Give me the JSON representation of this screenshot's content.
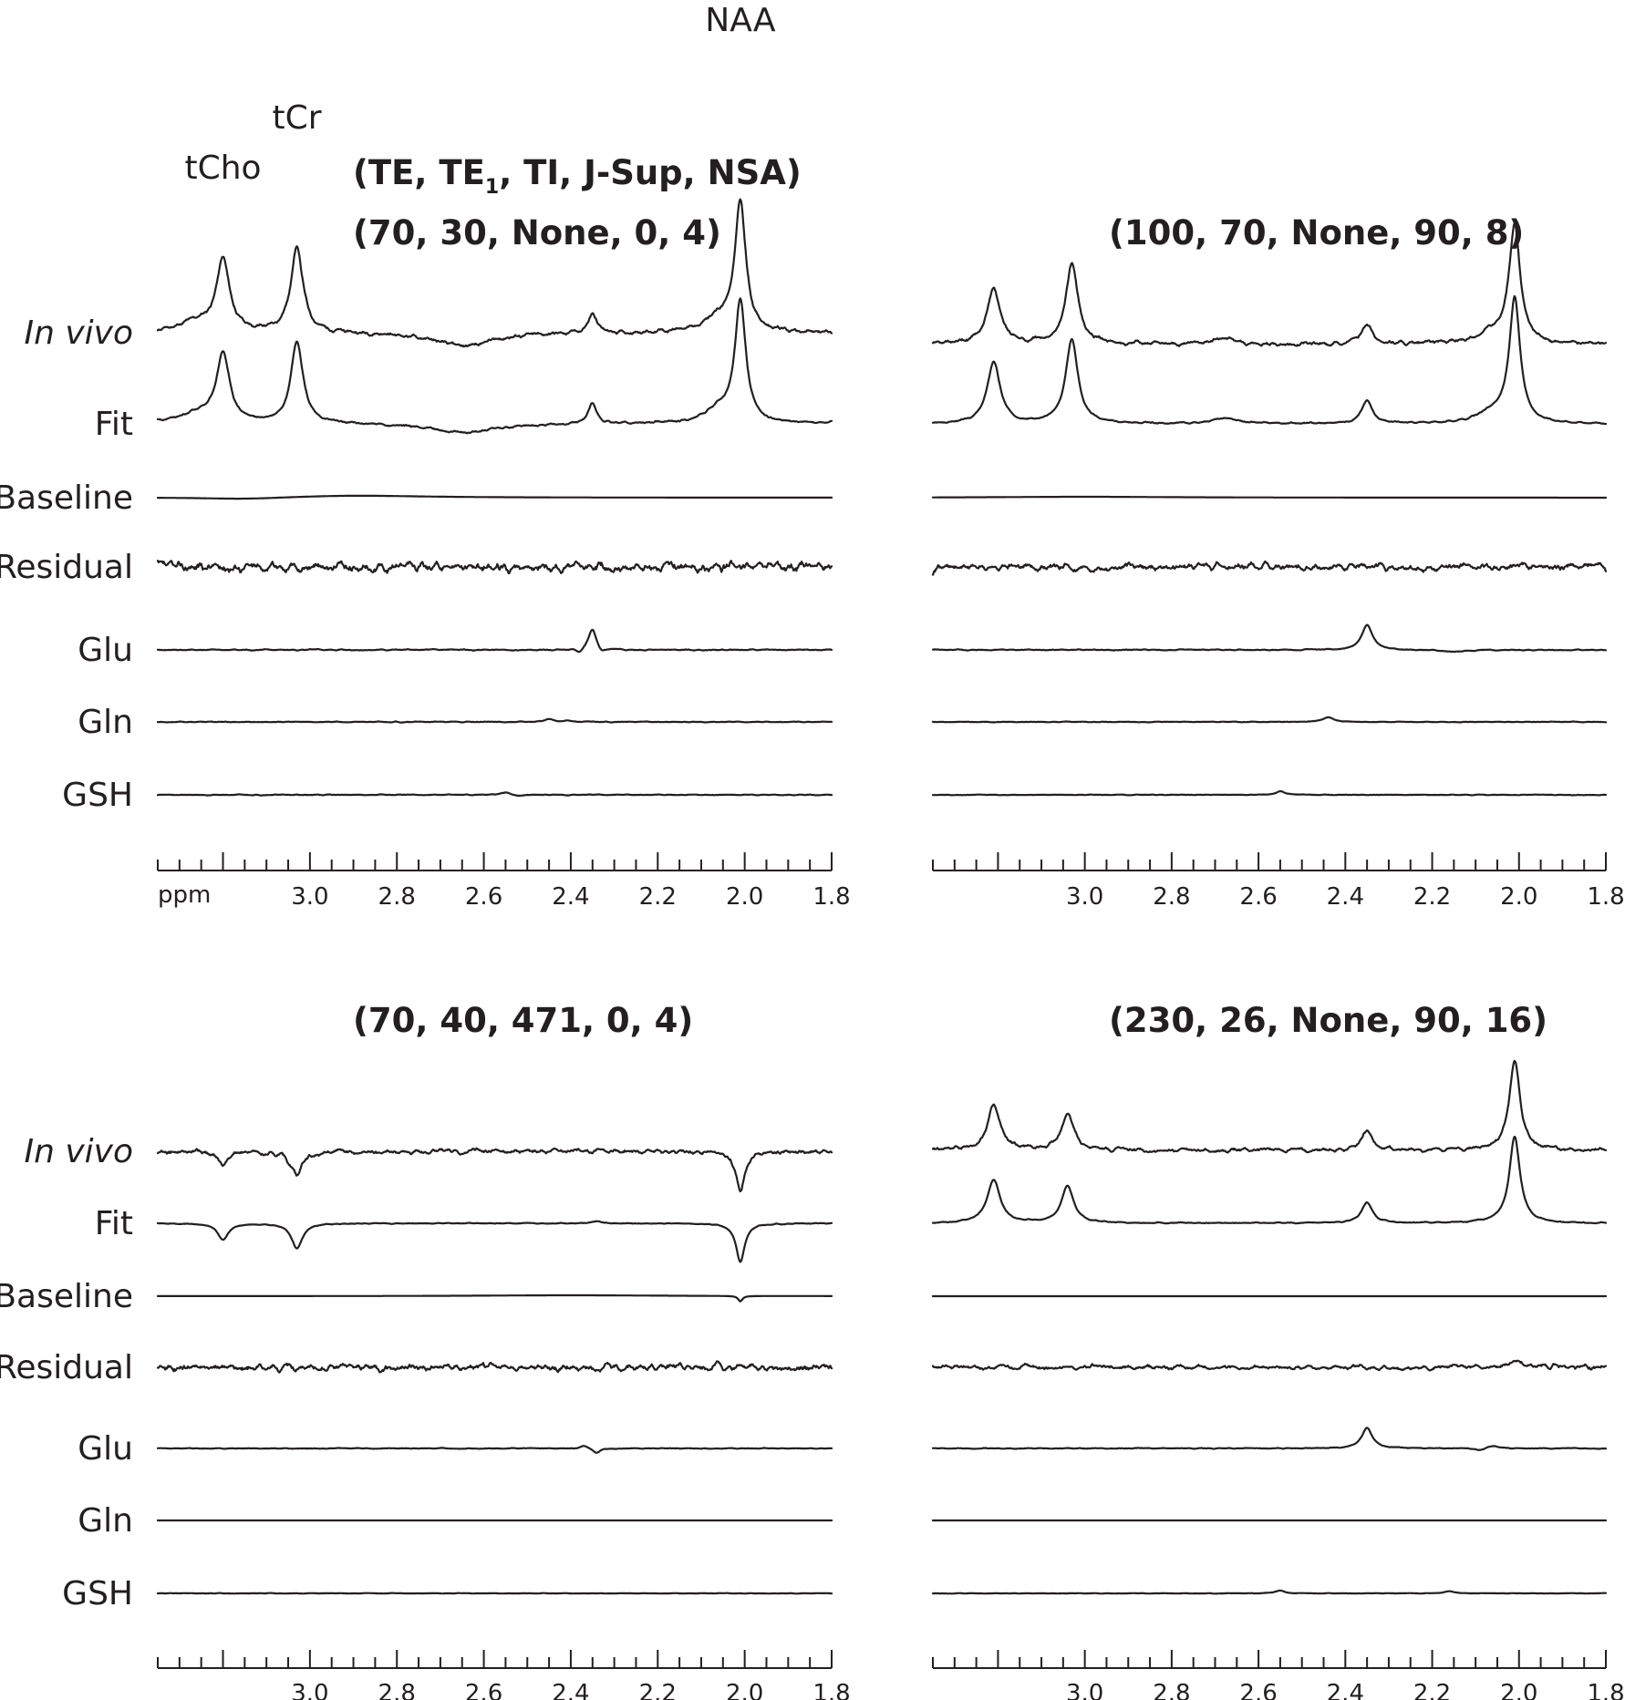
{
  "chart_data": [
    {
      "type": "line",
      "panel": "top-left",
      "params_label": "(70, 30, None, 0,  4)",
      "params_header_parts": [
        "(TE, TE",
        "1",
        ", TI, J-Sup, NSA)"
      ],
      "x_unit_label": "ppm",
      "xlim": [
        3.35,
        1.8
      ],
      "x_reversed": true,
      "tick_labels": [
        "3.0",
        "2.8",
        "2.6",
        "2.4",
        "2.2",
        "2.0",
        "1.8"
      ],
      "tick_values": [
        3.0,
        2.8,
        2.6,
        2.4,
        2.2,
        2.0,
        1.8
      ],
      "minor_tick_step": 0.05,
      "peak_labels": [
        {
          "text": "tCho",
          "ppm": 3.2
        },
        {
          "text": "tCr",
          "ppm": 3.03
        },
        {
          "text": "NAA",
          "ppm": 2.01
        }
      ],
      "series": [
        {
          "name": "In vivo",
          "italic": true,
          "noise": 0.05,
          "seed": 11,
          "peaks": [
            [
              3.2,
              1.55,
              0.018
            ],
            [
              3.03,
              1.85,
              0.017
            ],
            [
              2.35,
              0.42,
              0.012
            ],
            [
              2.01,
              2.8,
              0.015
            ],
            [
              3.26,
              0.22,
              0.05
            ],
            [
              2.06,
              0.3,
              0.04
            ]
          ],
          "dips": [
            [
              2.65,
              0.3,
              0.08
            ]
          ]
        },
        {
          "name": "Fit",
          "italic": false,
          "noise": 0.03,
          "seed": 23,
          "peaks": [
            [
              3.2,
              1.5,
              0.018
            ],
            [
              3.03,
              1.8,
              0.017
            ],
            [
              2.35,
              0.45,
              0.012
            ],
            [
              2.01,
              2.65,
              0.015
            ],
            [
              3.26,
              0.2,
              0.05
            ],
            [
              2.06,
              0.28,
              0.04
            ]
          ],
          "dips": [
            [
              2.65,
              0.2,
              0.08
            ]
          ]
        },
        {
          "name": "Baseline",
          "italic": false,
          "noise": 0.0,
          "seed": 0,
          "peaks": [
            [
              2.9,
              0.05,
              0.2
            ]
          ],
          "dips": [
            [
              3.15,
              0.04,
              0.12
            ]
          ]
        },
        {
          "name": "Residual",
          "italic": false,
          "noise": 0.12,
          "seed": 37,
          "peaks": [],
          "dips": []
        },
        {
          "name": "Glu",
          "italic": false,
          "noise": 0.015,
          "seed": 41,
          "peaks": [
            [
              2.35,
              0.48,
              0.012
            ]
          ],
          "dips": [
            [
              2.38,
              0.1,
              0.01
            ],
            [
              2.33,
              0.12,
              0.01
            ]
          ]
        },
        {
          "name": "Gln",
          "italic": false,
          "noise": 0.01,
          "seed": 53,
          "peaks": [
            [
              2.45,
              0.06,
              0.012
            ],
            [
              2.41,
              0.03,
              0.01
            ]
          ],
          "dips": []
        },
        {
          "name": "GSH",
          "italic": false,
          "noise": 0.01,
          "seed": 59,
          "peaks": [
            [
              2.55,
              0.05,
              0.012
            ]
          ],
          "dips": [
            [
              2.52,
              0.03,
              0.01
            ]
          ]
        }
      ]
    },
    {
      "type": "line",
      "panel": "top-right",
      "params_label": "(100, 70, None, 90,  8)",
      "xlim": [
        3.35,
        1.8
      ],
      "x_reversed": true,
      "tick_labels": [
        "3.0",
        "2.8",
        "2.6",
        "2.4",
        "2.2",
        "2.0",
        "1.8"
      ],
      "tick_values": [
        3.0,
        2.8,
        2.6,
        2.4,
        2.2,
        2.0,
        1.8
      ],
      "minor_tick_step": 0.05,
      "series": [
        {
          "name": "In vivo",
          "italic": true,
          "noise": 0.05,
          "seed": 61,
          "peaks": [
            [
              3.21,
              1.25,
              0.018
            ],
            [
              3.03,
              1.75,
              0.017
            ],
            [
              2.35,
              0.45,
              0.015
            ],
            [
              2.01,
              2.6,
              0.015
            ],
            [
              2.68,
              0.15,
              0.03
            ],
            [
              2.06,
              0.25,
              0.04
            ]
          ],
          "dips": []
        },
        {
          "name": "Fit",
          "italic": false,
          "noise": 0.02,
          "seed": 67,
          "peaks": [
            [
              3.21,
              1.35,
              0.018
            ],
            [
              3.03,
              1.85,
              0.017
            ],
            [
              2.35,
              0.5,
              0.015
            ],
            [
              2.01,
              2.7,
              0.015
            ],
            [
              2.68,
              0.12,
              0.03
            ],
            [
              2.06,
              0.22,
              0.04
            ]
          ],
          "dips": []
        },
        {
          "name": "Baseline",
          "italic": false,
          "noise": 0.0,
          "seed": 0,
          "peaks": [
            [
              3.0,
              0.02,
              0.25
            ]
          ],
          "dips": []
        },
        {
          "name": "Residual",
          "italic": false,
          "noise": 0.09,
          "seed": 71,
          "peaks": [],
          "dips": []
        },
        {
          "name": "Glu",
          "italic": false,
          "noise": 0.012,
          "seed": 73,
          "peaks": [
            [
              2.35,
              0.55,
              0.015
            ]
          ],
          "dips": [
            [
              2.15,
              0.05,
              0.03
            ]
          ]
        },
        {
          "name": "Gln",
          "italic": false,
          "noise": 0.008,
          "seed": 79,
          "peaks": [
            [
              2.44,
              0.1,
              0.015
            ]
          ],
          "dips": []
        },
        {
          "name": "GSH",
          "italic": false,
          "noise": 0.008,
          "seed": 83,
          "peaks": [
            [
              2.55,
              0.08,
              0.012
            ]
          ],
          "dips": []
        }
      ]
    },
    {
      "type": "line",
      "panel": "bottom-left",
      "params_label": "(70, 40, 471, 0,  4)",
      "xlim": [
        3.35,
        1.8
      ],
      "x_reversed": true,
      "tick_labels": [
        "3.0",
        "2.8",
        "2.6",
        "2.4",
        "2.2",
        "2.0",
        "1.8"
      ],
      "tick_values": [
        3.0,
        2.8,
        2.6,
        2.4,
        2.2,
        2.0,
        1.8
      ],
      "minor_tick_step": 0.05,
      "series": [
        {
          "name": "In vivo",
          "italic": true,
          "noise": 0.06,
          "seed": 89,
          "peaks": [],
          "dips": [
            [
              3.2,
              0.3,
              0.015
            ],
            [
              3.03,
              0.55,
              0.015
            ],
            [
              2.01,
              0.9,
              0.012
            ]
          ]
        },
        {
          "name": "Fit",
          "italic": false,
          "noise": 0.01,
          "seed": 97,
          "peaks": [
            [
              2.34,
              0.05,
              0.01
            ]
          ],
          "dips": [
            [
              3.2,
              0.35,
              0.015
            ],
            [
              3.03,
              0.55,
              0.015
            ],
            [
              2.01,
              0.85,
              0.012
            ]
          ]
        },
        {
          "name": "Baseline",
          "italic": false,
          "noise": 0.0,
          "seed": 0,
          "peaks": [
            [
              2.4,
              0.02,
              0.25
            ]
          ],
          "dips": [
            [
              2.01,
              0.12,
              0.006
            ]
          ]
        },
        {
          "name": "Residual",
          "italic": false,
          "noise": 0.09,
          "seed": 101,
          "peaks": [],
          "dips": []
        },
        {
          "name": "Glu",
          "italic": false,
          "noise": 0.01,
          "seed": 103,
          "peaks": [
            [
              2.37,
              0.06,
              0.01
            ]
          ],
          "dips": [
            [
              2.34,
              0.1,
              0.01
            ]
          ]
        },
        {
          "name": "Gln",
          "italic": false,
          "noise": 0.0,
          "seed": 0,
          "peaks": [],
          "dips": []
        },
        {
          "name": "GSH",
          "italic": false,
          "noise": 0.006,
          "seed": 107,
          "peaks": [],
          "dips": []
        }
      ]
    },
    {
      "type": "line",
      "panel": "bottom-right",
      "params_label": "(230, 26, None, 90,  16)",
      "xlim": [
        3.35,
        1.8
      ],
      "x_reversed": true,
      "tick_labels": [
        "3.0",
        "2.8",
        "2.6",
        "2.4",
        "2.2",
        "2.0",
        "1.8"
      ],
      "tick_values": [
        3.0,
        2.8,
        2.6,
        2.4,
        2.2,
        2.0,
        1.8
      ],
      "minor_tick_step": 0.05,
      "series": [
        {
          "name": "In vivo",
          "italic": true,
          "noise": 0.05,
          "seed": 109,
          "peaks": [
            [
              3.21,
              0.95,
              0.018
            ],
            [
              3.04,
              0.8,
              0.017
            ],
            [
              2.35,
              0.45,
              0.015
            ],
            [
              2.01,
              2.0,
              0.015
            ]
          ],
          "dips": []
        },
        {
          "name": "Fit",
          "italic": false,
          "noise": 0.015,
          "seed": 113,
          "peaks": [
            [
              3.21,
              0.95,
              0.018
            ],
            [
              3.04,
              0.8,
              0.017
            ],
            [
              2.35,
              0.45,
              0.015
            ],
            [
              2.01,
              1.9,
              0.015
            ]
          ],
          "dips": []
        },
        {
          "name": "Baseline",
          "italic": false,
          "noise": 0.0,
          "seed": 0,
          "peaks": [],
          "dips": []
        },
        {
          "name": "Residual",
          "italic": false,
          "noise": 0.06,
          "seed": 127,
          "peaks": [
            [
              2.01,
              0.15,
              0.01
            ]
          ],
          "dips": []
        },
        {
          "name": "Glu",
          "italic": false,
          "noise": 0.01,
          "seed": 131,
          "peaks": [
            [
              2.35,
              0.45,
              0.015
            ],
            [
              2.06,
              0.06,
              0.015
            ]
          ],
          "dips": [
            [
              2.09,
              0.05,
              0.015
            ]
          ]
        },
        {
          "name": "Gln",
          "italic": false,
          "noise": 0.0,
          "seed": 0,
          "peaks": [],
          "dips": []
        },
        {
          "name": "GSH",
          "italic": false,
          "noise": 0.006,
          "seed": 137,
          "peaks": [
            [
              2.55,
              0.06,
              0.012
            ],
            [
              2.16,
              0.05,
              0.012
            ]
          ],
          "dips": []
        }
      ]
    }
  ]
}
